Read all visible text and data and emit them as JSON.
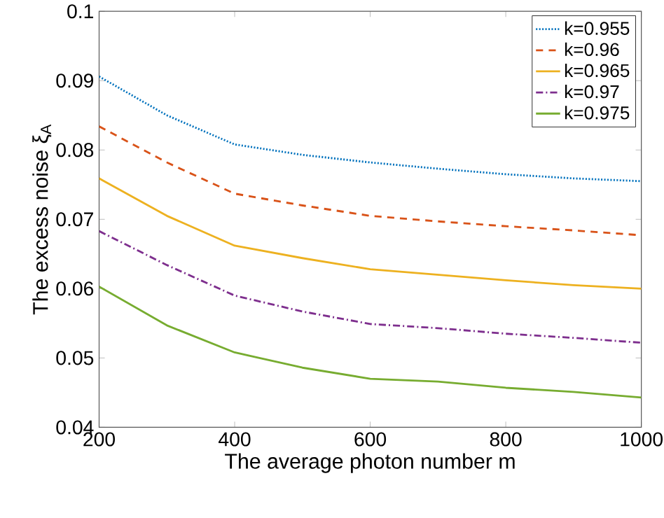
{
  "chart_data": {
    "type": "line",
    "xlabel": "The average photon number m",
    "ylabel": "The excess noise ξ$_{A}$",
    "x": [
      200,
      300,
      400,
      500,
      600,
      700,
      800,
      900,
      1000
    ],
    "series": [
      {
        "name": "k=0.955",
        "color": "#0072bd",
        "line_style": "dotted",
        "values": [
          0.0906,
          0.085,
          0.0808,
          0.0793,
          0.0782,
          0.0773,
          0.0765,
          0.0759,
          0.0755
        ]
      },
      {
        "name": "k=0.96",
        "color": "#d95319",
        "line_style": "dashed",
        "values": [
          0.0834,
          0.0782,
          0.0737,
          0.072,
          0.0705,
          0.0697,
          0.069,
          0.0684,
          0.0677
        ]
      },
      {
        "name": "k=0.965",
        "color": "#edb120",
        "line_style": "solid",
        "values": [
          0.0759,
          0.0705,
          0.0662,
          0.0644,
          0.0628,
          0.062,
          0.0612,
          0.0605,
          0.06
        ]
      },
      {
        "name": "k=0.97",
        "color": "#7e2f8e",
        "line_style": "dashdot",
        "values": [
          0.0683,
          0.0634,
          0.059,
          0.0567,
          0.0549,
          0.0543,
          0.0535,
          0.0529,
          0.0522
        ]
      },
      {
        "name": "k=0.975",
        "color": "#77ac30",
        "line_style": "solid",
        "values": [
          0.0603,
          0.0547,
          0.0508,
          0.0486,
          0.047,
          0.0466,
          0.0457,
          0.0451,
          0.0443
        ]
      }
    ],
    "xlim": [
      200,
      1000
    ],
    "ylim": [
      0.04,
      0.1
    ],
    "xticks": [
      200,
      400,
      600,
      800,
      1000
    ],
    "yticks": [
      0.04,
      0.05,
      0.06,
      0.07,
      0.08,
      0.09,
      0.1
    ],
    "legend": "top right",
    "grid": false,
    "marker": "none"
  }
}
